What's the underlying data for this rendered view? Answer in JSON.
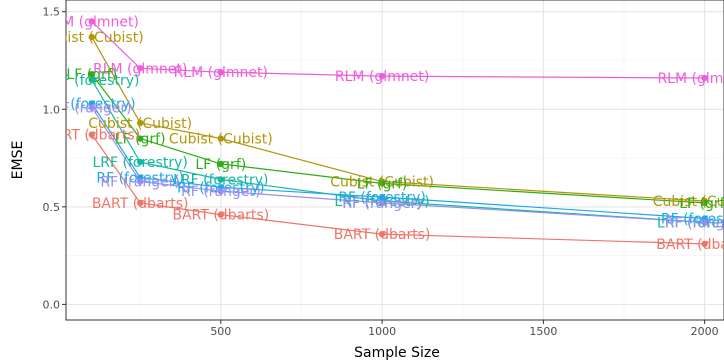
{
  "chart_data": {
    "type": "line",
    "xlabel": "Sample Size",
    "ylabel": "EMSE",
    "xlim": [
      20,
      2060
    ],
    "ylim": [
      -0.08,
      1.56
    ],
    "xticks": [
      500,
      1000,
      1500,
      2000
    ],
    "yticks": [
      0.0,
      0.5,
      1.0,
      1.5
    ],
    "xtick_labels": [
      "500",
      "1000",
      "1500",
      "2000"
    ],
    "ytick_labels": [
      "0.0",
      "0.5",
      "1.0",
      "1.5"
    ],
    "grid": true,
    "legend": "none",
    "series": [
      {
        "name": "RLM (glmnet)",
        "color": "#ee5ddc",
        "x": [
          100,
          250,
          500,
          1000,
          2000
        ],
        "y": [
          1.45,
          1.21,
          1.19,
          1.17,
          1.16
        ],
        "labels": [
          "RLM (glmnet)",
          "RLM (glmnet)",
          "RLM (glmnet)",
          "RLM (glmnet)",
          "RLM (glmnet)"
        ]
      },
      {
        "name": "Cubist (Cubist)",
        "color": "#b2960a",
        "x": [
          100,
          250,
          500,
          1000,
          2000
        ],
        "y": [
          1.37,
          0.93,
          0.85,
          0.63,
          0.53
        ],
        "labels": [
          "Cubist (Cubist)",
          "Cubist (Cubist)",
          "Cubist (Cubist)",
          "Cubist (Cubist)",
          "Cubist (Cubist)"
        ]
      },
      {
        "name": "LF (grf)",
        "color": "#2fac16",
        "x": [
          100,
          250,
          500,
          1000,
          2000
        ],
        "y": [
          1.18,
          0.85,
          0.72,
          0.62,
          0.52
        ],
        "labels": [
          "LF (grf)",
          "LF (grf)",
          "LF (grf)",
          "LF (grf)",
          "LF (grf)"
        ]
      },
      {
        "name": "LRF (forestry)",
        "color": "#14b8a0",
        "x": [
          100,
          250,
          500,
          1000,
          2000
        ],
        "y": [
          1.15,
          0.73,
          0.64,
          0.53,
          0.42
        ],
        "labels": [
          "LRF (forestry)",
          "LRF (forestry)",
          "LRF (forestry)",
          "LRF (forestry)",
          "LRF (forestry)"
        ]
      },
      {
        "name": "RF (forestry)",
        "color": "#1fa8e8",
        "x": [
          100,
          250,
          500,
          1000,
          2000
        ],
        "y": [
          1.03,
          0.65,
          0.6,
          0.55,
          0.44
        ],
        "labels": [
          "RF (forestry)",
          "RF (forestry)",
          "RF (forestry)",
          "RF (forestry)",
          "RF (forestry)"
        ]
      },
      {
        "name": "RF (ranger)",
        "color": "#9c8cf0",
        "x": [
          100,
          250,
          500,
          1000,
          2000
        ],
        "y": [
          1.01,
          0.63,
          0.58,
          0.52,
          0.42
        ],
        "labels": [
          "RF (ranger)",
          "RF (ranger)",
          "RF (ranger)",
          "RF (ranger)",
          "RF (ranger)"
        ]
      },
      {
        "name": "BART (dbarts)",
        "color": "#f07569",
        "x": [
          100,
          250,
          500,
          1000,
          2000
        ],
        "y": [
          0.87,
          0.52,
          0.46,
          0.36,
          0.31
        ],
        "labels": [
          "BART (dbarts)",
          "BART (dbarts)",
          "BART (dbarts)",
          "BART (dbarts)",
          "BART (dbarts)"
        ]
      }
    ]
  }
}
